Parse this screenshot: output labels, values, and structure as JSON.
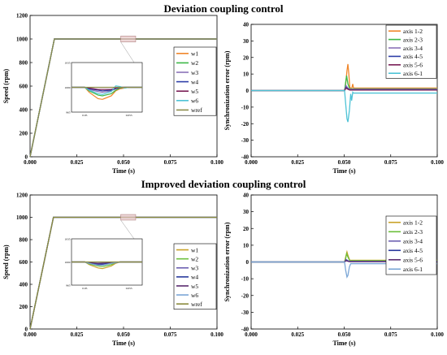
{
  "figure_titles": [
    "Deviation coupling control",
    "Improved deviation coupling control"
  ],
  "chart_data": [
    {
      "type": "line",
      "title": "",
      "xlabel": "Time (s)",
      "ylabel": "Speed (rpm)",
      "xlim": [
        0,
        0.1
      ],
      "ylim": [
        0,
        1200
      ],
      "xticks": [
        "0.000",
        "0.025",
        "0.050",
        "0.075",
        "0.100"
      ],
      "yticks": [
        "0",
        "200",
        "400",
        "600",
        "800",
        "1000",
        "1200"
      ],
      "grid": false,
      "legend_position": "right",
      "series": [
        {
          "name": "w1",
          "color": "#f0862a",
          "x": [
            0,
            0.013,
            0.1
          ],
          "y": [
            0,
            1000,
            1000
          ]
        },
        {
          "name": "w2",
          "color": "#3cb846",
          "x": [
            0,
            0.013,
            0.1
          ],
          "y": [
            0,
            1000,
            1000
          ]
        },
        {
          "name": "w3",
          "color": "#8a72b8",
          "x": [
            0,
            0.013,
            0.1
          ],
          "y": [
            0,
            1000,
            1000
          ]
        },
        {
          "name": "w4",
          "color": "#2f3fa8",
          "x": [
            0,
            0.013,
            0.1
          ],
          "y": [
            0,
            1000,
            1000
          ]
        },
        {
          "name": "w5",
          "color": "#7a1e56",
          "x": [
            0,
            0.013,
            0.1
          ],
          "y": [
            0,
            1000,
            1000
          ]
        },
        {
          "name": "w6",
          "color": "#4ec3d6",
          "x": [
            0,
            0.013,
            0.1
          ],
          "y": [
            0,
            1000,
            1000
          ]
        },
        {
          "name": "wref",
          "color": "#8c8c4a",
          "x": [
            0,
            0.013,
            0.1
          ],
          "y": [
            0,
            1000,
            1000
          ]
        }
      ],
      "inset": {
        "xticks": [
          "0.05",
          "0.055"
        ],
        "yticks": [
          "965",
          "1000",
          "1035"
        ],
        "xlim": [
          0.0485,
          0.0565
        ],
        "ylim": [
          965,
          1035
        ],
        "series": [
          {
            "name": "w1",
            "color": "#f0862a",
            "x": [
              0.0485,
              0.05,
              0.0505,
              0.0515,
              0.052,
              0.053,
              0.0535,
              0.054,
              0.0545,
              0.055,
              0.0565
            ],
            "y": [
              1000,
              1000,
              993,
              984,
              983,
              988,
              995,
              998,
              999,
              1000,
              1000
            ]
          },
          {
            "name": "w2",
            "color": "#3cb846",
            "x": [
              0.0485,
              0.05,
              0.0505,
              0.0515,
              0.052,
              0.053,
              0.0535,
              0.054,
              0.0545,
              0.055,
              0.0565
            ],
            "y": [
              1000,
              1000,
              995,
              989,
              988,
              991,
              996,
              999,
              1000,
              1000,
              1000
            ]
          },
          {
            "name": "w3",
            "color": "#8a72b8",
            "x": [
              0.0485,
              0.05,
              0.0505,
              0.0515,
              0.052,
              0.053,
              0.0535,
              0.054,
              0.0545,
              0.055,
              0.0565
            ],
            "y": [
              1000,
              1000,
              997,
              994,
              993,
              995,
              998,
              1000,
              1000,
              1000,
              1000
            ]
          },
          {
            "name": "w4",
            "color": "#2f3fa8",
            "x": [
              0.0485,
              0.05,
              0.0505,
              0.0515,
              0.052,
              0.053,
              0.0535,
              0.054,
              0.0545,
              0.055,
              0.0565
            ],
            "y": [
              1000,
              1000,
              998,
              996,
              995,
              996,
              998,
              1000,
              1000,
              1000,
              1000
            ]
          },
          {
            "name": "w5",
            "color": "#7a1e56",
            "x": [
              0.0485,
              0.05,
              0.0505,
              0.0515,
              0.052,
              0.053,
              0.0535,
              0.054,
              0.0545,
              0.055,
              0.0565
            ],
            "y": [
              1000,
              1000,
              999,
              997,
              997,
              997,
              999,
              1000,
              1000,
              1000,
              1000
            ]
          },
          {
            "name": "w6",
            "color": "#4ec3d6",
            "x": [
              0.0485,
              0.05,
              0.0505,
              0.0515,
              0.052,
              0.053,
              0.0535,
              0.054,
              0.0545,
              0.055,
              0.0565
            ],
            "y": [
              1000,
              1000,
              996,
              991,
              990,
              994,
              1002,
              1001,
              999,
              1000,
              1000
            ]
          },
          {
            "name": "wref",
            "color": "#8c8c4a",
            "x": [
              0.0485,
              0.0565
            ],
            "y": [
              1000,
              1000
            ]
          }
        ]
      }
    },
    {
      "type": "line",
      "title": "",
      "xlabel": "Time (s)",
      "ylabel": "Synchronization error (rpm)",
      "xlim": [
        0,
        0.1
      ],
      "ylim": [
        -40,
        40
      ],
      "xticks": [
        "0.000",
        "0.025",
        "0.050",
        "0.075",
        "0.100"
      ],
      "yticks": [
        "-40",
        "-30",
        "-20",
        "-10",
        "0",
        "10",
        "20",
        "30",
        "40"
      ],
      "grid": false,
      "legend_position": "top-right",
      "series": [
        {
          "name": "axis 1-2",
          "color": "#f0862a",
          "x": [
            0,
            0.0502,
            0.0508,
            0.0515,
            0.052,
            0.0525,
            0.053,
            0.054,
            0.0546,
            0.055,
            0.1
          ],
          "y": [
            0,
            0,
            4,
            12,
            16,
            10,
            2,
            1,
            4,
            1.5,
            1.5
          ]
        },
        {
          "name": "axis 2-3",
          "color": "#3cb846",
          "x": [
            0,
            0.0502,
            0.0508,
            0.0513,
            0.052,
            0.053,
            0.1
          ],
          "y": [
            0,
            0,
            5,
            9,
            4,
            1,
            1
          ]
        },
        {
          "name": "axis 3-4",
          "color": "#8a72b8",
          "x": [
            0,
            0.0502,
            0.051,
            0.052,
            0.053,
            0.1
          ],
          "y": [
            0,
            0,
            3,
            1.5,
            0.8,
            0.8
          ]
        },
        {
          "name": "axis 4-5",
          "color": "#2f3fa8",
          "x": [
            0,
            0.0502,
            0.051,
            0.052,
            0.053,
            0.1
          ],
          "y": [
            0,
            0,
            2,
            1,
            0.5,
            0.5
          ]
        },
        {
          "name": "axis 5-6",
          "color": "#7a1e56",
          "x": [
            0,
            0.0502,
            0.051,
            0.052,
            0.053,
            0.1
          ],
          "y": [
            0,
            0,
            1.5,
            0.8,
            0.3,
            0.3
          ]
        },
        {
          "name": "axis 6-1",
          "color": "#4ec3d6",
          "x": [
            0,
            0.0502,
            0.0508,
            0.0515,
            0.052,
            0.0528,
            0.0535,
            0.054,
            0.0546,
            0.055,
            0.1
          ],
          "y": [
            0,
            0,
            -8,
            -17,
            -19,
            -12,
            -2,
            -6,
            -1,
            -1.5,
            -1.5
          ]
        }
      ]
    },
    {
      "type": "line",
      "title": "",
      "xlabel": "Time (s)",
      "ylabel": "Speed (rpm)",
      "xlim": [
        0,
        0.1
      ],
      "ylim": [
        0,
        1200
      ],
      "xticks": [
        "0.000",
        "0.025",
        "0.050",
        "0.075",
        "0.100"
      ],
      "yticks": [
        "0",
        "200",
        "400",
        "600",
        "800",
        "1000",
        "1200"
      ],
      "grid": false,
      "legend_position": "right",
      "series": [
        {
          "name": "w1",
          "color": "#c9a227",
          "x": [
            0,
            0.0125,
            0.1
          ],
          "y": [
            0,
            1000,
            1000
          ]
        },
        {
          "name": "w2",
          "color": "#6cbf3c",
          "x": [
            0,
            0.0125,
            0.1
          ],
          "y": [
            0,
            1000,
            1000
          ]
        },
        {
          "name": "w3",
          "color": "#6a5db0",
          "x": [
            0,
            0.0125,
            0.1
          ],
          "y": [
            0,
            1000,
            1000
          ]
        },
        {
          "name": "w4",
          "color": "#2a3a9e",
          "x": [
            0,
            0.0125,
            0.1
          ],
          "y": [
            0,
            1000,
            1000
          ]
        },
        {
          "name": "w5",
          "color": "#5a2a6e",
          "x": [
            0,
            0.0125,
            0.1
          ],
          "y": [
            0,
            1000,
            1000
          ]
        },
        {
          "name": "w6",
          "color": "#7aa6d6",
          "x": [
            0,
            0.0125,
            0.1
          ],
          "y": [
            0,
            1000,
            1000
          ]
        },
        {
          "name": "wref",
          "color": "#8a8a3c",
          "x": [
            0,
            0.0125,
            0.1
          ],
          "y": [
            0,
            1000,
            1000
          ]
        }
      ],
      "inset": {
        "xticks": [
          "0.05",
          "0.055"
        ],
        "yticks": [
          "965",
          "1000",
          "1035"
        ],
        "xlim": [
          0.0485,
          0.0565
        ],
        "ylim": [
          965,
          1035
        ],
        "series": [
          {
            "name": "w1",
            "color": "#c9a227",
            "x": [
              0.0485,
              0.05,
              0.0505,
              0.0515,
              0.052,
              0.053,
              0.0535,
              0.054,
              0.0565
            ],
            "y": [
              1000,
              1000,
              996,
              991,
              990,
              994,
              998,
              1000,
              1000
            ]
          },
          {
            "name": "w2",
            "color": "#6cbf3c",
            "x": [
              0.0485,
              0.05,
              0.0505,
              0.0515,
              0.052,
              0.053,
              0.0535,
              0.054,
              0.0565
            ],
            "y": [
              1000,
              1000,
              997,
              994,
              993,
              996,
              999,
              1000,
              1000
            ]
          },
          {
            "name": "w3",
            "color": "#6a5db0",
            "x": [
              0.0485,
              0.05,
              0.0505,
              0.0515,
              0.052,
              0.053,
              0.054,
              0.0565
            ],
            "y": [
              1000,
              1000,
              998,
              996,
              996,
              998,
              1000,
              1000
            ]
          },
          {
            "name": "w4",
            "color": "#2a3a9e",
            "x": [
              0.0485,
              0.05,
              0.0505,
              0.0515,
              0.052,
              0.053,
              0.054,
              0.0565
            ],
            "y": [
              1000,
              1000,
              999,
              997,
              997,
              999,
              1000,
              1000
            ]
          },
          {
            "name": "w5",
            "color": "#5a2a6e",
            "x": [
              0.0485,
              0.05,
              0.0505,
              0.0515,
              0.053,
              0.054,
              0.0565
            ],
            "y": [
              1000,
              1000,
              999,
              998,
              999,
              1000,
              1000
            ]
          },
          {
            "name": "w6",
            "color": "#7aa6d6",
            "x": [
              0.0485,
              0.05,
              0.0505,
              0.0515,
              0.052,
              0.053,
              0.054,
              0.0565
            ],
            "y": [
              1000,
              1000,
              998,
              995,
              995,
              998,
              1000,
              1000
            ]
          },
          {
            "name": "wref",
            "color": "#8a8a3c",
            "x": [
              0.0485,
              0.0565
            ],
            "y": [
              1000,
              1000
            ]
          }
        ]
      }
    },
    {
      "type": "line",
      "title": "",
      "xlabel": "Time (s)",
      "ylabel": "Synchronization error (rpm)",
      "xlim": [
        0,
        0.1
      ],
      "ylim": [
        -40,
        40
      ],
      "xticks": [
        "0.000",
        "0.025",
        "0.050",
        "0.075",
        "0.100"
      ],
      "yticks": [
        "-40",
        "-30",
        "-20",
        "-10",
        "0",
        "10",
        "20",
        "30",
        "40"
      ],
      "grid": false,
      "legend_position": "top-right",
      "series": [
        {
          "name": "axis 1-2",
          "color": "#c9a227",
          "x": [
            0,
            0.0502,
            0.0508,
            0.0515,
            0.052,
            0.053,
            0.1
          ],
          "y": [
            0,
            0,
            3,
            6,
            4,
            1,
            1
          ]
        },
        {
          "name": "axis 2-3",
          "color": "#6cbf3c",
          "x": [
            0,
            0.0502,
            0.0508,
            0.0513,
            0.052,
            0.053,
            0.1
          ],
          "y": [
            0,
            0,
            2,
            5,
            3,
            0.8,
            0.8
          ]
        },
        {
          "name": "axis 3-4",
          "color": "#6a5db0",
          "x": [
            0,
            0.0502,
            0.051,
            0.052,
            0.053,
            0.1
          ],
          "y": [
            0,
            0,
            1.5,
            0.8,
            0.4,
            0.4
          ]
        },
        {
          "name": "axis 4-5",
          "color": "#2a3a9e",
          "x": [
            0,
            0.0502,
            0.051,
            0.052,
            0.053,
            0.1
          ],
          "y": [
            0,
            0,
            1,
            0.5,
            0.3,
            0.3
          ]
        },
        {
          "name": "axis 5-6",
          "color": "#5a2a6e",
          "x": [
            0,
            0.0502,
            0.051,
            0.052,
            0.053,
            0.1
          ],
          "y": [
            0,
            0,
            0.8,
            0.4,
            0.2,
            0.2
          ]
        },
        {
          "name": "axis 6-1",
          "color": "#7aa6d6",
          "x": [
            0,
            0.0502,
            0.0508,
            0.0515,
            0.052,
            0.0528,
            0.0535,
            0.1
          ],
          "y": [
            0,
            0,
            -5,
            -9,
            -8,
            -3,
            -1,
            -1
          ]
        }
      ]
    }
  ]
}
